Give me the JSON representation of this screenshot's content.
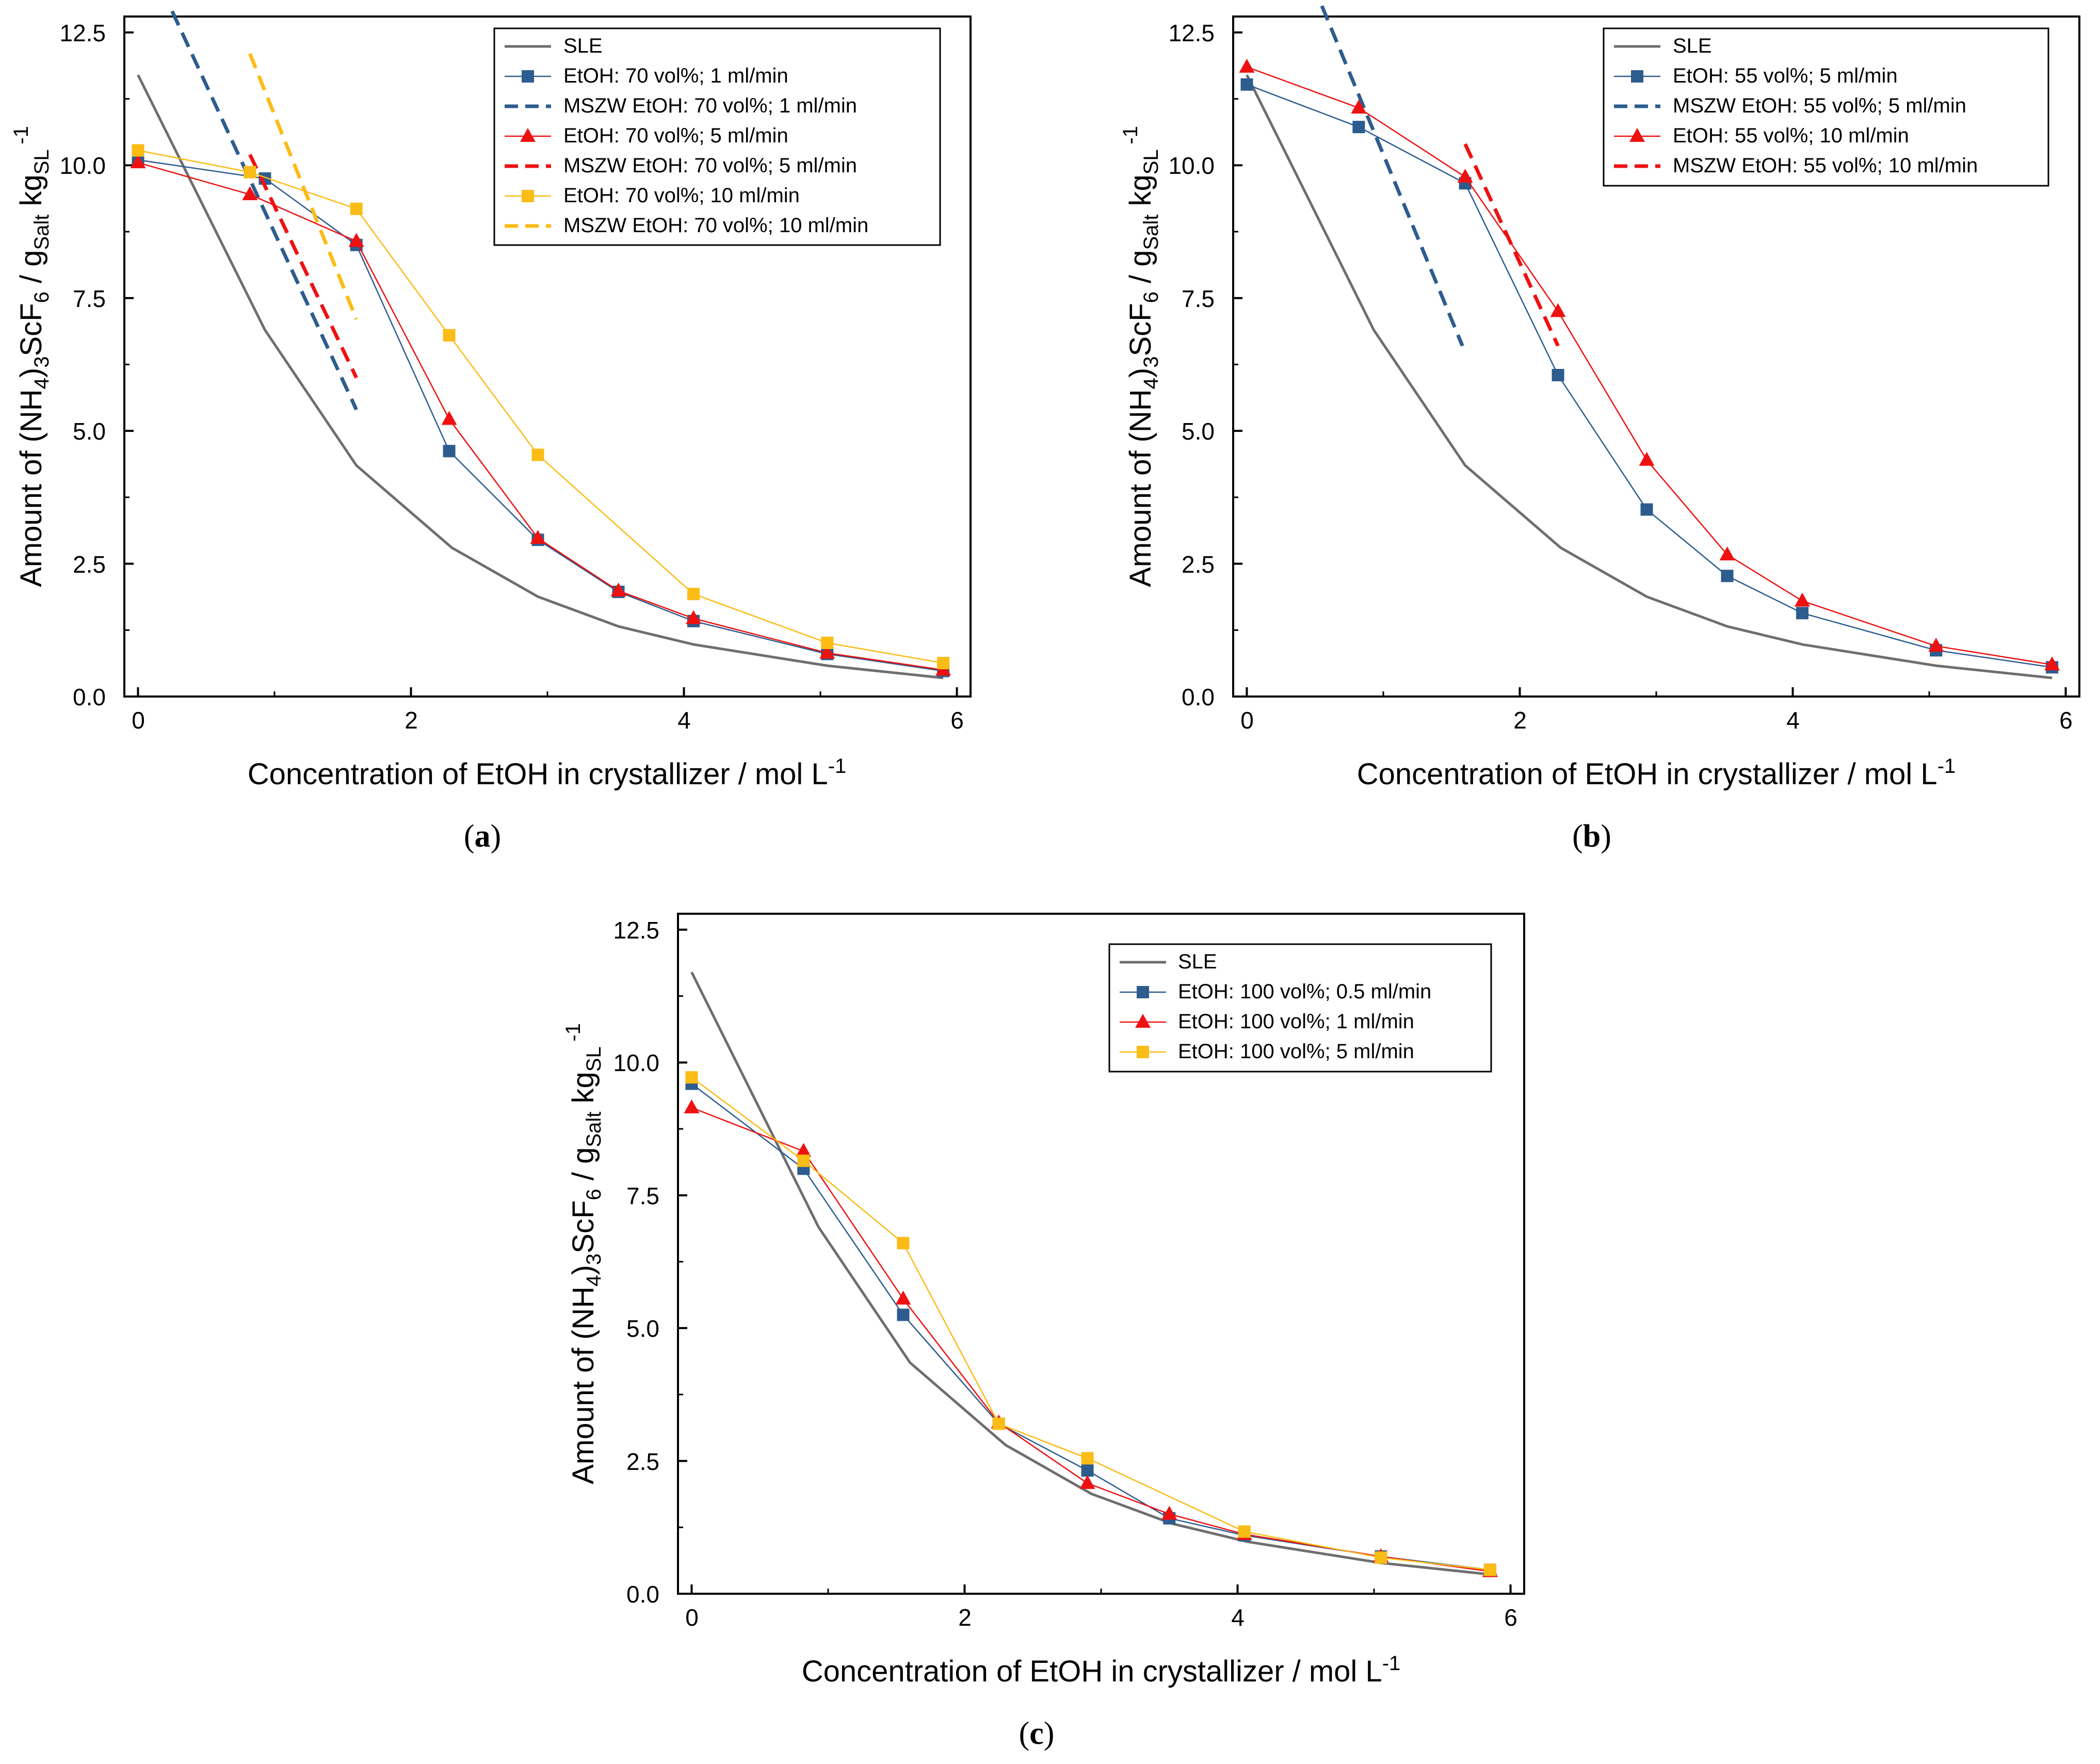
{
  "colors": {
    "sle": "#6e6e6e",
    "blue": "#2d5c8e",
    "red": "#ee1111",
    "yellow": "#fbbc16",
    "axis": "#000000"
  },
  "chart_data": [
    {
      "id": "a",
      "type": "line",
      "caption": "(a)",
      "caption_letter": "a",
      "xlabel": "Concentration of EtOH in crystallizer / mol L",
      "xlabel_sup": "-1",
      "ylabel": {
        "a": "Amount of (NH",
        "b": "4",
        "c": ")",
        "d": "3",
        "e": "ScF",
        "f": "6",
        "g": " / g",
        "h": "Salt",
        "i": " kg",
        "j": "SL",
        "k": " -1"
      },
      "xlim": [
        -0.1,
        6.1
      ],
      "ylim": [
        0,
        12.8
      ],
      "xticks": [
        0,
        2,
        4,
        6
      ],
      "xtick_labels": [
        "0",
        "2",
        "4",
        "6"
      ],
      "yticks": [
        0,
        2.5,
        5,
        7.5,
        10,
        12.5
      ],
      "ytick_labels": [
        "0.0",
        "2.5",
        "5.0",
        "7.5",
        "10.0",
        "12.5"
      ],
      "series": [
        {
          "name": "SLE",
          "color": "sle",
          "marker": "none",
          "dash": false,
          "x": [
            0,
            0.93,
            1.6,
            2.3,
            2.93,
            3.52,
            4.07,
            5.05,
            5.9
          ],
          "y": [
            11.7,
            6.9,
            4.35,
            2.8,
            1.88,
            1.32,
            0.98,
            0.58,
            0.35
          ]
        },
        {
          "name": "EtOH: 70 vol%; 1 ml/min",
          "color": "blue",
          "marker": "square",
          "dash": false,
          "x": [
            0,
            0.93,
            1.6,
            2.28,
            2.93,
            3.52,
            4.07,
            5.05,
            5.9
          ],
          "y": [
            10.1,
            9.75,
            8.5,
            4.62,
            2.95,
            1.97,
            1.42,
            0.8,
            0.48
          ]
        },
        {
          "name": "MSZW EtOH: 70 vol%; 1 ml/min",
          "color": "blue",
          "marker": "none",
          "dash": true,
          "x": [
            0.25,
            1.6
          ],
          "y": [
            12.9,
            5.4
          ]
        },
        {
          "name": "EtOH: 70 vol%; 5 ml/min",
          "color": "red",
          "marker": "triangle",
          "dash": false,
          "x": [
            0,
            0.82,
            1.6,
            2.28,
            2.93,
            3.52,
            4.07,
            5.05,
            5.9
          ],
          "y": [
            10.05,
            9.45,
            8.57,
            5.22,
            2.98,
            1.99,
            1.47,
            0.82,
            0.5
          ]
        },
        {
          "name": "MSZW EtOH: 70 vol%; 5 ml/min",
          "color": "red",
          "marker": "none",
          "dash": true,
          "x": [
            0.82,
            1.6
          ],
          "y": [
            10.2,
            6.0
          ]
        },
        {
          "name": "EtOH: 70 vol%; 10 ml/min",
          "color": "yellow",
          "marker": "square",
          "dash": false,
          "x": [
            0,
            0.82,
            1.6,
            2.28,
            2.93,
            4.07,
            5.05,
            5.9
          ],
          "y": [
            10.28,
            9.87,
            9.18,
            6.8,
            4.55,
            1.93,
            1.01,
            0.63
          ]
        },
        {
          "name": "MSZW EtOH: 70 vol%; 10 ml/min",
          "color": "yellow",
          "marker": "none",
          "dash": true,
          "x": [
            0.82,
            1.6
          ],
          "y": [
            12.1,
            7.1
          ]
        }
      ]
    },
    {
      "id": "b",
      "type": "line",
      "caption": "(b)",
      "caption_letter": "b",
      "xlabel": "Concentration of EtOH in crystallizer / mol L",
      "xlabel_sup": "-1",
      "ylabel": {
        "a": "Amount of (NH",
        "b": "4",
        "c": ")",
        "d": "3",
        "e": "ScF",
        "f": "6",
        "g": " / g",
        "h": "Salt",
        "i": " kg",
        "j": "SL",
        "k": " -1"
      },
      "xlim": [
        -0.1,
        6.1
      ],
      "ylim": [
        0,
        12.8
      ],
      "xticks": [
        0,
        2,
        4,
        6
      ],
      "xtick_labels": [
        "0",
        "2",
        "4",
        "6"
      ],
      "yticks": [
        0,
        2.5,
        5,
        7.5,
        10,
        12.5
      ],
      "ytick_labels": [
        "0.0",
        "2.5",
        "5.0",
        "7.5",
        "10.0",
        "12.5"
      ],
      "series": [
        {
          "name": "SLE",
          "color": "sle",
          "marker": "none",
          "dash": false,
          "x": [
            0,
            0.93,
            1.6,
            2.3,
            2.93,
            3.52,
            4.07,
            5.05,
            5.9
          ],
          "y": [
            11.7,
            6.9,
            4.35,
            2.8,
            1.88,
            1.32,
            0.98,
            0.58,
            0.35
          ]
        },
        {
          "name": "EtOH: 55 vol%; 5 ml/min",
          "color": "blue",
          "marker": "square",
          "dash": false,
          "x": [
            0,
            0.82,
            1.6,
            2.28,
            2.93,
            3.52,
            4.07,
            5.05,
            5.9
          ],
          "y": [
            11.52,
            10.72,
            9.66,
            6.05,
            3.52,
            2.27,
            1.57,
            0.87,
            0.55
          ]
        },
        {
          "name": "MSZW EtOH: 55 vol%; 5 ml/min",
          "color": "blue",
          "marker": "none",
          "dash": true,
          "x": [
            0.55,
            1.58
          ],
          "y": [
            13.0,
            6.6
          ]
        },
        {
          "name": "EtOH: 55 vol%; 10 ml/min",
          "color": "red",
          "marker": "triangle",
          "dash": false,
          "x": [
            0,
            0.82,
            1.6,
            2.28,
            2.93,
            3.52,
            4.07,
            5.05,
            5.9
          ],
          "y": [
            11.85,
            11.08,
            9.78,
            7.25,
            4.45,
            2.67,
            1.8,
            0.95,
            0.6
          ]
        },
        {
          "name": "MSZW EtOH: 55 vol%; 10 ml/min",
          "color": "red",
          "marker": "none",
          "dash": true,
          "x": [
            1.6,
            2.28
          ],
          "y": [
            10.4,
            6.6
          ]
        }
      ]
    },
    {
      "id": "c",
      "type": "line",
      "caption": "(c)",
      "caption_letter": "c",
      "xlabel": "Concentration of EtOH in crystallizer / mol L",
      "xlabel_sup": "-1",
      "ylabel": {
        "a": "Amount of (NH",
        "b": "4",
        "c": ")",
        "d": "3",
        "e": "ScF",
        "f": "6",
        "g": " / g",
        "h": "Salt",
        "i": " kg",
        "j": "SL",
        "k": " -1"
      },
      "xlim": [
        -0.1,
        6.1
      ],
      "ylim": [
        0,
        12.8
      ],
      "xticks": [
        0,
        2,
        4,
        6
      ],
      "xtick_labels": [
        "0",
        "2",
        "4",
        "6"
      ],
      "yticks": [
        0,
        2.5,
        5,
        7.5,
        10,
        12.5
      ],
      "ytick_labels": [
        "0.0",
        "2.5",
        "5.0",
        "7.5",
        "10.0",
        "12.5"
      ],
      "series": [
        {
          "name": "SLE",
          "color": "sle",
          "marker": "none",
          "dash": false,
          "x": [
            0,
            0.93,
            1.6,
            2.3,
            2.93,
            3.52,
            4.07,
            5.05,
            5.9
          ],
          "y": [
            11.7,
            6.9,
            4.35,
            2.8,
            1.88,
            1.32,
            0.98,
            0.58,
            0.35
          ]
        },
        {
          "name": "EtOH: 100 vol%; 0.5 ml/min",
          "color": "blue",
          "marker": "square",
          "dash": false,
          "x": [
            0,
            0.82,
            1.55,
            2.25,
            2.9,
            3.5,
            4.05,
            5.05,
            5.85
          ],
          "y": [
            9.6,
            8.0,
            5.25,
            3.2,
            2.32,
            1.42,
            1.1,
            0.7,
            0.45
          ]
        },
        {
          "name": "EtOH: 100 vol%; 1 ml/min",
          "color": "red",
          "marker": "triangle",
          "dash": false,
          "x": [
            0,
            0.82,
            1.55,
            2.25,
            2.9,
            3.5,
            4.05,
            5.05,
            5.85
          ],
          "y": [
            9.15,
            8.33,
            5.55,
            3.22,
            2.08,
            1.5,
            1.12,
            0.7,
            0.42
          ]
        },
        {
          "name": "EtOH: 100 vol%; 5 ml/min",
          "color": "yellow",
          "marker": "square",
          "dash": false,
          "x": [
            0,
            0.82,
            1.55,
            2.25,
            2.9,
            4.05,
            5.05,
            5.85
          ],
          "y": [
            9.72,
            8.15,
            6.6,
            3.2,
            2.55,
            1.17,
            0.68,
            0.45
          ]
        }
      ]
    }
  ]
}
